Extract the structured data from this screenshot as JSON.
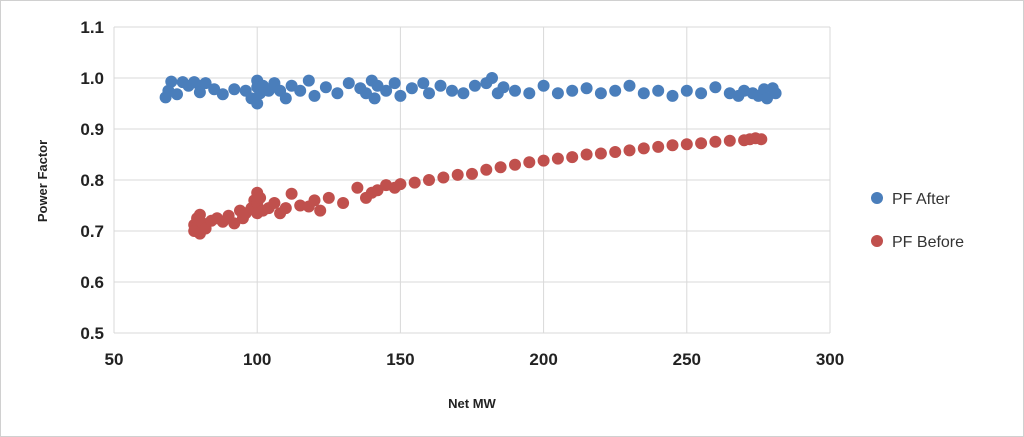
{
  "chart_data": {
    "type": "scatter",
    "title": "",
    "xlabel": "Net MW",
    "ylabel": "Power Factor",
    "xlim": [
      50,
      300
    ],
    "ylim": [
      0.5,
      1.1
    ],
    "x_ticks": [
      50,
      100,
      150,
      200,
      250,
      300
    ],
    "y_ticks": [
      0.5,
      0.6,
      0.7,
      0.8,
      0.9,
      1.0,
      1.1
    ],
    "x_tick_labels": [
      "50",
      "100",
      "150",
      "200",
      "250",
      "300"
    ],
    "y_tick_labels": [
      "0.5",
      "0.6",
      "0.7",
      "0.8",
      "0.9",
      "1.0",
      "1.1"
    ],
    "grid": {
      "x": true,
      "y": true
    },
    "legend_position": "right",
    "series": [
      {
        "name": "PF After",
        "color": "#4a7ebb",
        "x": [
          68,
          69,
          70,
          72,
          74,
          76,
          78,
          80,
          80,
          82,
          85,
          88,
          92,
          96,
          98,
          100,
          100,
          100,
          101,
          102,
          104,
          106,
          108,
          110,
          112,
          115,
          118,
          120,
          124,
          128,
          132,
          136,
          138,
          140,
          141,
          142,
          145,
          148,
          150,
          154,
          158,
          160,
          164,
          168,
          172,
          176,
          180,
          182,
          184,
          186,
          190,
          195,
          200,
          205,
          210,
          215,
          220,
          225,
          230,
          235,
          240,
          245,
          250,
          255,
          260,
          265,
          268,
          270,
          273,
          275,
          277,
          278,
          280,
          281
        ],
        "y": [
          0.962,
          0.975,
          0.993,
          0.968,
          0.992,
          0.985,
          0.992,
          0.985,
          0.972,
          0.99,
          0.978,
          0.968,
          0.978,
          0.975,
          0.96,
          0.995,
          0.95,
          0.982,
          0.97,
          0.985,
          0.975,
          0.99,
          0.975,
          0.96,
          0.985,
          0.975,
          0.995,
          0.965,
          0.982,
          0.97,
          0.99,
          0.98,
          0.97,
          0.995,
          0.96,
          0.985,
          0.975,
          0.99,
          0.965,
          0.98,
          0.99,
          0.97,
          0.985,
          0.975,
          0.97,
          0.985,
          0.99,
          1.0,
          0.97,
          0.982,
          0.975,
          0.97,
          0.985,
          0.97,
          0.975,
          0.98,
          0.97,
          0.975,
          0.985,
          0.97,
          0.975,
          0.965,
          0.975,
          0.97,
          0.982,
          0.97,
          0.965,
          0.975,
          0.97,
          0.965,
          0.978,
          0.96,
          0.98,
          0.97
        ]
      },
      {
        "name": "PF Before",
        "color": "#c0504d",
        "x": [
          78,
          78,
          79,
          80,
          80,
          81,
          82,
          84,
          86,
          88,
          90,
          92,
          94,
          95,
          96,
          98,
          99,
          100,
          100,
          100,
          101,
          102,
          104,
          106,
          108,
          110,
          112,
          115,
          118,
          120,
          122,
          125,
          130,
          135,
          138,
          140,
          142,
          145,
          148,
          150,
          155,
          160,
          165,
          170,
          175,
          180,
          185,
          190,
          195,
          200,
          205,
          210,
          215,
          220,
          225,
          230,
          235,
          240,
          245,
          250,
          255,
          260,
          265,
          270,
          272,
          274,
          276
        ],
        "y": [
          0.712,
          0.7,
          0.725,
          0.695,
          0.732,
          0.715,
          0.705,
          0.72,
          0.725,
          0.718,
          0.73,
          0.715,
          0.74,
          0.725,
          0.735,
          0.745,
          0.76,
          0.775,
          0.755,
          0.735,
          0.765,
          0.74,
          0.745,
          0.755,
          0.735,
          0.745,
          0.773,
          0.75,
          0.748,
          0.76,
          0.74,
          0.765,
          0.755,
          0.785,
          0.765,
          0.775,
          0.78,
          0.79,
          0.785,
          0.792,
          0.795,
          0.8,
          0.805,
          0.81,
          0.812,
          0.82,
          0.825,
          0.83,
          0.835,
          0.838,
          0.842,
          0.845,
          0.85,
          0.852,
          0.855,
          0.858,
          0.862,
          0.865,
          0.868,
          0.87,
          0.872,
          0.875,
          0.877,
          0.878,
          0.88,
          0.882,
          0.88
        ]
      }
    ]
  }
}
